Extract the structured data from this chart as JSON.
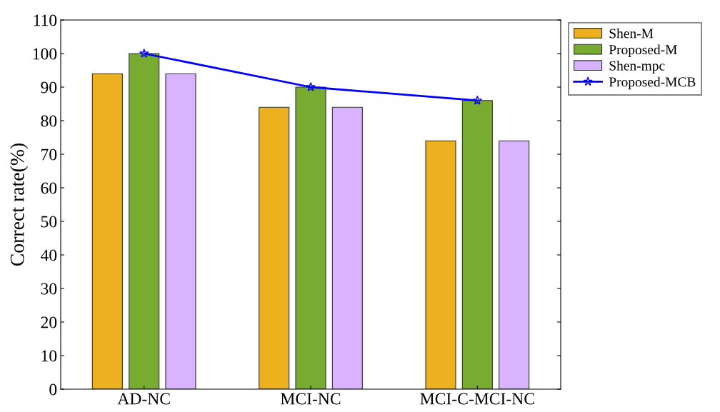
{
  "chart_data": {
    "type": "bar",
    "ylabel": "Correct rate(%)",
    "categories": [
      "AD-NC",
      "MCI-NC",
      "MCI-C-MCI-NC"
    ],
    "series": [
      {
        "name": "Shen-M",
        "color": "#edb120",
        "values": [
          94,
          84,
          74
        ]
      },
      {
        "name": "Proposed-M",
        "color": "#77ac30",
        "values": [
          100,
          90,
          86
        ]
      },
      {
        "name": "Shen-mpc",
        "color": "#d9b3ff",
        "values": [
          94,
          84,
          74
        ]
      },
      {
        "name": "Proposed-MCB",
        "type": "line",
        "color": "#0000ff",
        "values": [
          100,
          90,
          86
        ],
        "marker": "star",
        "line_style": "solid"
      }
    ],
    "ylim": [
      0,
      110
    ],
    "yticks": [
      0,
      10,
      20,
      30,
      40,
      50,
      60,
      70,
      80,
      90,
      100,
      110
    ],
    "legend": "right"
  }
}
